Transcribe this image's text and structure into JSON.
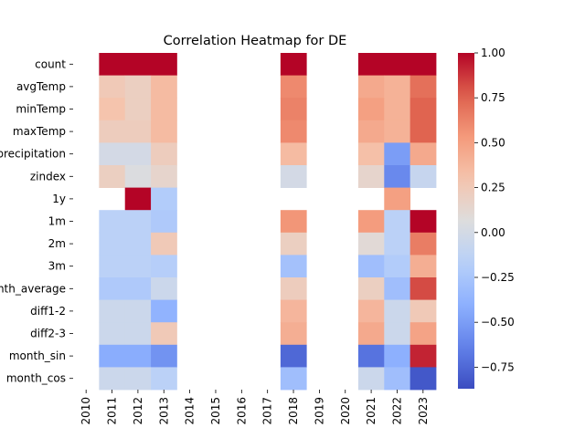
{
  "chart_data": {
    "type": "heatmap",
    "title": "Correlation Heatmap for DE",
    "xlabel": "",
    "ylabel": "",
    "x_categories": [
      "2010",
      "2011",
      "2012",
      "2013",
      "2014",
      "2015",
      "2016",
      "2017",
      "2018",
      "2019",
      "2020",
      "2021",
      "2022",
      "2023"
    ],
    "y_categories": [
      "count",
      "avgTemp",
      "minTemp",
      "maxTemp",
      "precipitation",
      "zindex",
      "1y",
      "1m",
      "2m",
      "3m",
      "month_average",
      "diff1-2",
      "diff2-3",
      "month_sin",
      "month_cos"
    ],
    "values": [
      [
        null,
        1.0,
        1.0,
        1.0,
        null,
        null,
        null,
        null,
        1.0,
        null,
        null,
        1.0,
        1.0,
        1.0
      ],
      [
        null,
        0.25,
        0.2,
        0.35,
        null,
        null,
        null,
        null,
        0.6,
        null,
        null,
        0.45,
        0.4,
        0.7
      ],
      [
        null,
        0.3,
        0.2,
        0.35,
        null,
        null,
        null,
        null,
        0.63,
        null,
        null,
        0.5,
        0.4,
        0.75
      ],
      [
        null,
        0.22,
        0.22,
        0.35,
        null,
        null,
        null,
        null,
        0.6,
        null,
        null,
        0.45,
        0.4,
        0.75
      ],
      [
        null,
        0.0,
        0.0,
        0.22,
        null,
        null,
        null,
        null,
        0.35,
        null,
        null,
        0.32,
        -0.5,
        0.45
      ],
      [
        null,
        0.2,
        0.05,
        0.15,
        null,
        null,
        null,
        null,
        0.0,
        null,
        null,
        0.15,
        -0.6,
        -0.08
      ],
      [
        null,
        null,
        1.0,
        -0.2,
        null,
        null,
        null,
        null,
        null,
        null,
        null,
        null,
        0.5,
        null
      ],
      [
        null,
        -0.15,
        -0.15,
        -0.22,
        null,
        null,
        null,
        null,
        0.55,
        null,
        null,
        0.52,
        -0.15,
        1.0
      ],
      [
        null,
        -0.15,
        -0.15,
        0.25,
        null,
        null,
        null,
        null,
        0.2,
        null,
        null,
        0.1,
        -0.15,
        0.65
      ],
      [
        null,
        -0.15,
        -0.15,
        -0.18,
        null,
        null,
        null,
        null,
        -0.28,
        null,
        null,
        -0.3,
        -0.2,
        0.42
      ],
      [
        null,
        -0.22,
        -0.22,
        -0.05,
        null,
        null,
        null,
        null,
        0.22,
        null,
        null,
        0.2,
        -0.3,
        0.82
      ],
      [
        null,
        -0.05,
        -0.05,
        -0.38,
        null,
        null,
        null,
        null,
        0.38,
        null,
        null,
        0.38,
        -0.05,
        0.25
      ],
      [
        null,
        -0.05,
        -0.05,
        0.25,
        null,
        null,
        null,
        null,
        0.42,
        null,
        null,
        0.45,
        -0.05,
        0.48
      ],
      [
        null,
        -0.42,
        -0.42,
        -0.55,
        null,
        null,
        null,
        null,
        -0.75,
        null,
        null,
        -0.7,
        -0.4,
        0.92
      ],
      [
        null,
        -0.05,
        -0.05,
        -0.15,
        null,
        null,
        null,
        null,
        -0.3,
        null,
        null,
        -0.05,
        -0.3,
        -0.82
      ]
    ],
    "colorbar": {
      "colormap": "coolwarm",
      "vmin": -0.87,
      "vmax": 1.0,
      "ticks": [
        -0.75,
        -0.5,
        -0.25,
        0.0,
        0.25,
        0.5,
        0.75,
        1.0
      ],
      "tick_labels": [
        "−0.75",
        "−0.50",
        "−0.25",
        "0.00",
        "0.25",
        "0.50",
        "0.75",
        "1.00"
      ]
    },
    "grid": false,
    "legend": "colorbar-right"
  }
}
